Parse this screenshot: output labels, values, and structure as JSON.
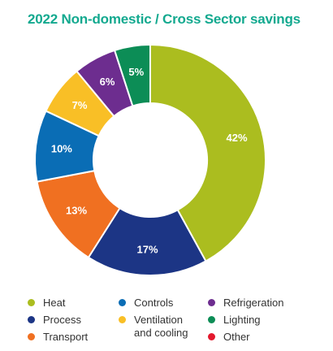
{
  "title_color": "#13a98f",
  "chart_data": {
    "type": "pie",
    "style": "donut",
    "title": "2022 Non-domestic / Cross Sector savings",
    "start_angle_deg": 0,
    "direction": "clockwise",
    "legend_position": "bottom",
    "slices": [
      {
        "name": "Heat",
        "value": 42,
        "label": "42%",
        "color": "#abbd1f"
      },
      {
        "name": "Process",
        "value": 17,
        "label": "17%",
        "color": "#1c3585"
      },
      {
        "name": "Transport",
        "value": 13,
        "label": "13%",
        "color": "#f07021"
      },
      {
        "name": "Controls",
        "value": 10,
        "label": "10%",
        "color": "#0a6db5"
      },
      {
        "name": "Ventilation\nand cooling",
        "value": 7,
        "label": "7%",
        "color": "#f9bf26"
      },
      {
        "name": "Refrigeration",
        "value": 6,
        "label": "6%",
        "color": "#6d2d8f"
      },
      {
        "name": "Lighting",
        "value": 5,
        "label": "5%",
        "color": "#0c8d56"
      },
      {
        "name": "Other",
        "value": 0,
        "label": "",
        "color": "#e3182d"
      }
    ]
  },
  "legend": {
    "columns": [
      [
        "Heat",
        "Process",
        "Transport"
      ],
      [
        "Controls",
        "Ventilation\nand cooling"
      ],
      [
        "Refrigeration",
        "Lighting",
        "Other"
      ]
    ]
  }
}
